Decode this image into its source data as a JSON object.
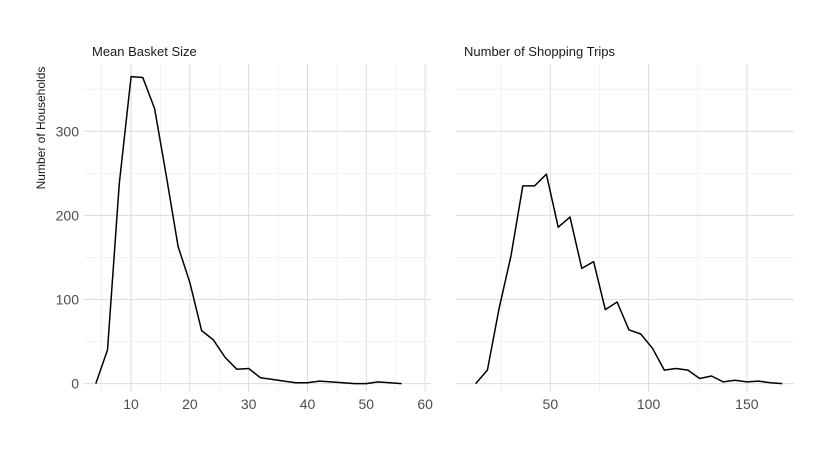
{
  "y_axis_title": "Number of Households",
  "chart_data": [
    {
      "type": "line",
      "title": "Mean Basket Size",
      "xlabel": "",
      "ylabel": "Number of Households",
      "xlim": [
        2,
        61
      ],
      "ylim": [
        -10,
        380
      ],
      "x_ticks": [
        10,
        20,
        30,
        40,
        50,
        60
      ],
      "y_ticks": [
        0,
        100,
        200,
        300
      ],
      "grid": true,
      "x": [
        4,
        6,
        8,
        10,
        12,
        14,
        16,
        18,
        20,
        22,
        24,
        26,
        28,
        30,
        32,
        34,
        36,
        38,
        40,
        42,
        44,
        46,
        48,
        50,
        52,
        54,
        56
      ],
      "values": [
        0,
        40,
        238,
        365,
        364,
        327,
        247,
        163,
        120,
        63,
        52,
        31,
        17,
        18,
        7,
        5,
        3,
        1,
        1,
        3,
        2,
        1,
        0,
        0,
        2,
        1,
        0
      ]
    },
    {
      "type": "line",
      "title": "Number of Shopping Trips",
      "xlabel": "",
      "ylabel": "",
      "xlim": [
        2,
        174
      ],
      "ylim": [
        -10,
        380
      ],
      "x_ticks": [
        50,
        100,
        150
      ],
      "y_ticks": [
        0,
        100,
        200,
        300
      ],
      "grid": true,
      "x": [
        12,
        18,
        24,
        30,
        36,
        42,
        48,
        54,
        60,
        66,
        72,
        78,
        84,
        90,
        96,
        102,
        108,
        114,
        120,
        126,
        132,
        138,
        144,
        150,
        156,
        162,
        168
      ],
      "values": [
        0,
        16,
        90,
        152,
        235,
        235,
        249,
        186,
        198,
        137,
        145,
        88,
        97,
        64,
        59,
        42,
        16,
        18,
        16,
        6,
        9,
        2,
        4,
        2,
        3,
        1,
        0
      ]
    }
  ]
}
